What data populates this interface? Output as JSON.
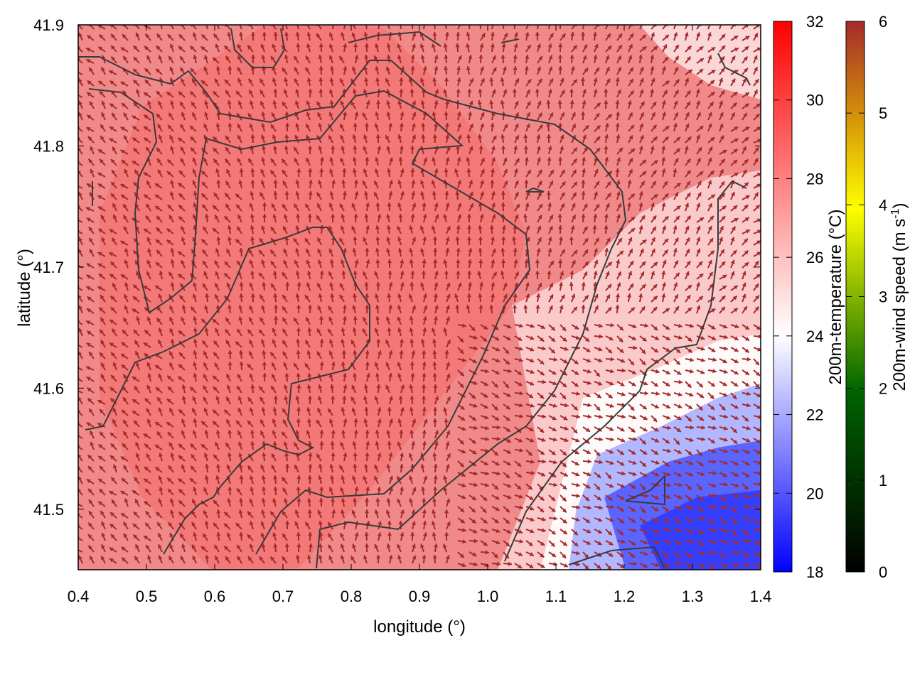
{
  "chart_data": {
    "type": "heatmap",
    "title": "",
    "xlabel": "longitude (°)",
    "ylabel": "latitude (°)",
    "xlim": [
      0.4,
      1.4
    ],
    "ylim": [
      41.45,
      41.9
    ],
    "x_ticks": [
      "0.4",
      "0.5",
      "0.6",
      "0.7",
      "0.8",
      "0.9",
      "1.0",
      "1.1",
      "1.2",
      "1.3",
      "1.4"
    ],
    "y_ticks": [
      "41.5",
      "41.6",
      "41.7",
      "41.8",
      "41.9"
    ],
    "fields": {
      "temperature": {
        "label": "200m-temperature (°C)",
        "range": [
          18,
          32
        ],
        "ticks": [
          "18",
          "20",
          "22",
          "24",
          "26",
          "28",
          "30",
          "32"
        ],
        "colormap": [
          "#0000ff",
          "#ffffff",
          "#ff0000"
        ],
        "description_values": {
          "warm_core_region": 29.5,
          "southeast_cold_pool": 20.5
        }
      },
      "wind_speed": {
        "label": "200m-wind speed (m s-1)",
        "label_main": "200m-wind speed (m s",
        "label_sup": "-1",
        "label_close": ")",
        "range": [
          0,
          6
        ],
        "ticks": [
          "0",
          "1",
          "2",
          "3",
          "4",
          "5",
          "6"
        ],
        "colormap": [
          "#000000",
          "#006400",
          "#ffff00",
          "#d4900a",
          "#a52a2a"
        ],
        "dominant_vector_color": "#a52a2a"
      }
    },
    "contour_color": "#3a3a3a",
    "grid": false
  }
}
